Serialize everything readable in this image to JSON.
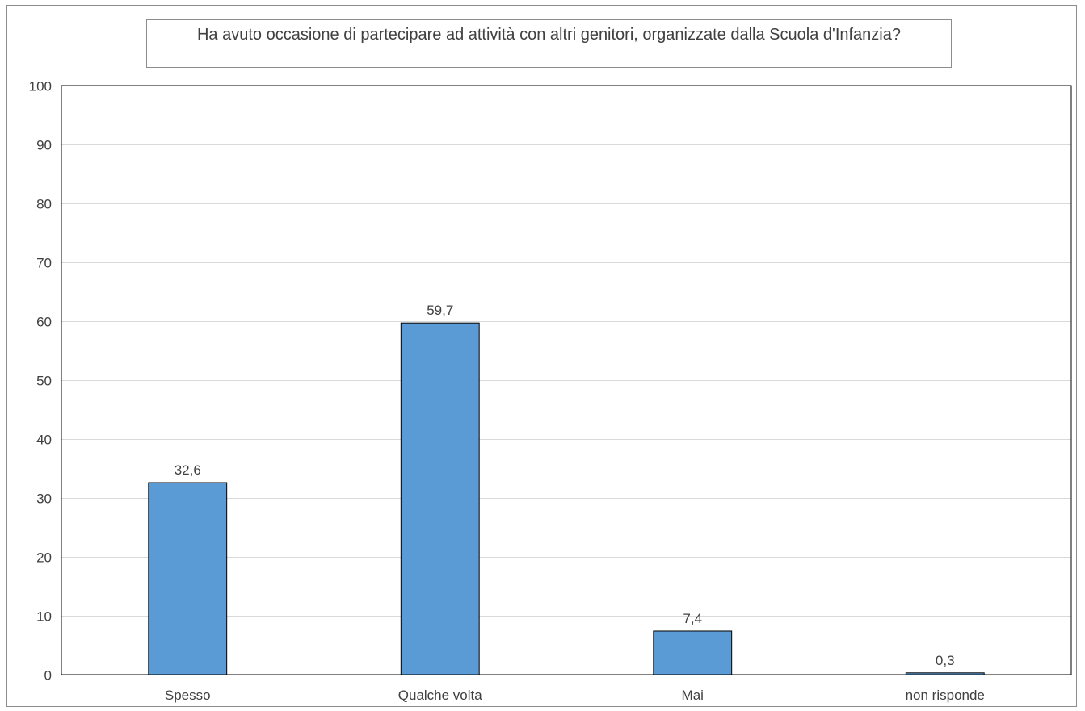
{
  "chart_data": {
    "type": "bar",
    "title": "Ha avuto occasione di partecipare ad attività con altri genitori, organizzate dalla Scuola d'Infanzia?",
    "categories": [
      "Spesso",
      "Qualche volta",
      "Mai",
      "non risponde"
    ],
    "values": [
      32.6,
      59.7,
      7.4,
      0.3
    ],
    "value_labels": [
      "32,6",
      "59,7",
      "7,4",
      "0,3"
    ],
    "ylim": [
      0,
      100
    ],
    "yticks": [
      0,
      10,
      20,
      30,
      40,
      50,
      60,
      70,
      80,
      90,
      100
    ],
    "grid": true,
    "legend": "none",
    "bar_color": "#5b9bd5",
    "bar_edge_color": "#000000",
    "grid_color": "#d9d9d9",
    "text_color": "#404040"
  }
}
